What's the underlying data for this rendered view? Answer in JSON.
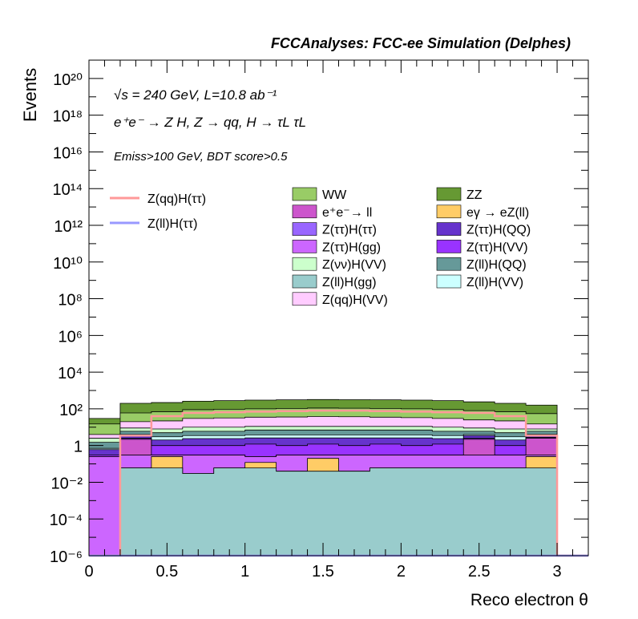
{
  "header": {
    "experiment": "FCCAnalyses: FCC-ee Simulation (Delphes)",
    "energy_line": "√s = 240 GeV, L=10.8 ab⁻¹",
    "process_line": "e⁺e⁻ → Z H, Z → qq, H → τL τL",
    "selection_line": "Emiss>100 GeV, BDT score>0.5"
  },
  "chart_data": {
    "type": "area",
    "title": "",
    "xlabel": "Reco electron θ",
    "ylabel": "Events",
    "xlim": [
      0,
      3.2
    ],
    "ylim": [
      1e-06,
      1e+21
    ],
    "log_y": true,
    "grid": false,
    "legend_placement": "top",
    "x_ticks": [
      "0",
      "0.5",
      "1",
      "1.5",
      "2",
      "2.5",
      "3"
    ],
    "y_ticks": [
      "10⁻⁶",
      "10⁻⁴",
      "10⁻²",
      "1",
      "10²",
      "10⁴",
      "10⁶",
      "10⁸",
      "10¹⁰",
      "10¹²",
      "10¹⁴",
      "10¹⁶",
      "10¹⁸",
      "10²⁰"
    ],
    "bin_edges": [
      0,
      0.2,
      0.4,
      0.6,
      0.8,
      1.0,
      1.2,
      1.4,
      1.6,
      1.8,
      2.0,
      2.2,
      2.4,
      2.6,
      2.8,
      3.0,
      3.2
    ],
    "stack_edges": [
      {
        "name": "Z(ll)H(gg)",
        "color": "#99cccc",
        "values": [
          1e-06,
          0.06,
          0.06,
          0.03,
          0.06,
          0.06,
          0.04,
          0.04,
          0.04,
          0.06,
          0.06,
          0.06,
          0.06,
          0.06,
          0.06,
          1e-06
        ]
      },
      {
        "name": "eγ → eZ(ll)",
        "color": "#ffcc66",
        "values": [
          1e-06,
          0.06,
          0.25,
          0.03,
          0.06,
          0.12,
          0.04,
          0.2,
          0.04,
          0.06,
          0.06,
          0.06,
          0.06,
          0.06,
          0.25,
          1e-06
        ]
      },
      {
        "name": "Z(ττ)H(gg)",
        "color": "#cc66ff",
        "values": [
          0.25,
          0.3,
          0.3,
          0.3,
          0.3,
          0.25,
          0.3,
          0.3,
          0.3,
          0.3,
          0.3,
          0.3,
          0.3,
          0.3,
          0.3,
          1e-06
        ]
      },
      {
        "name": "Z(ττ)H(ττ)",
        "color": "#9966ff",
        "values": [
          0.25,
          0.3,
          0.3,
          0.3,
          0.3,
          0.25,
          0.3,
          0.3,
          0.3,
          0.3,
          0.3,
          0.3,
          0.3,
          0.3,
          0.3,
          1e-06
        ]
      },
      {
        "name": "e⁺e⁻→ ll",
        "color": "#cc55cc",
        "values": [
          0.25,
          2.2,
          0.3,
          0.3,
          0.3,
          0.25,
          0.3,
          0.3,
          0.3,
          0.3,
          0.3,
          0.3,
          2.2,
          0.3,
          2.5,
          1e-06
        ]
      },
      {
        "name": "Z(ττ)H(VV)",
        "color": "#9933ff",
        "values": [
          0.3,
          2.5,
          1.0,
          1.0,
          1.0,
          1.2,
          1.0,
          1.2,
          1.0,
          1.2,
          1.0,
          1.2,
          2.5,
          1.0,
          2.8,
          1e-06
        ]
      },
      {
        "name": "Z(ττ)H(QQ)",
        "color": "#6633cc",
        "values": [
          0.6,
          3.5,
          2.0,
          2.4,
          2.4,
          2.6,
          2.6,
          2.6,
          2.6,
          2.6,
          2.6,
          2.4,
          3.5,
          2.0,
          3.8,
          1e-06
        ]
      },
      {
        "name": "Z(ll)H(VV)",
        "color": "#ccffff",
        "values": [
          0.7,
          4.0,
          3.0,
          3.5,
          3.5,
          3.8,
          3.8,
          3.8,
          3.8,
          3.8,
          3.8,
          3.5,
          4.0,
          3.0,
          4.2,
          1e-06
        ]
      },
      {
        "name": "Z(ll)H(QQ)",
        "color": "#669999",
        "values": [
          1.5,
          6,
          5,
          6,
          6,
          7,
          7,
          7,
          7,
          7,
          7,
          6,
          6,
          5,
          6,
          1e-06
        ]
      },
      {
        "name": "Z(νν)H(VV)",
        "color": "#ccffcc",
        "values": [
          2.5,
          9,
          8,
          10,
          10,
          11,
          11,
          11,
          11,
          11,
          11,
          10,
          9,
          8,
          8,
          1e-06
        ]
      },
      {
        "name": "Z(qq)H(VV)",
        "color": "#ffccff",
        "values": [
          4,
          20,
          22,
          30,
          32,
          35,
          36,
          38,
          37,
          35,
          33,
          30,
          25,
          22,
          15,
          1e-06
        ]
      },
      {
        "name": "WW",
        "color": "#99cc66",
        "values": [
          15,
          60,
          70,
          90,
          95,
          100,
          105,
          110,
          108,
          105,
          100,
          92,
          80,
          70,
          55,
          1e-06
        ]
      },
      {
        "name": "ZZ",
        "color": "#669933",
        "values": [
          30,
          200,
          220,
          260,
          280,
          300,
          310,
          320,
          315,
          310,
          300,
          280,
          240,
          200,
          160,
          1e-06
        ]
      }
    ],
    "overlay_lines": [
      {
        "name": "Z(qq)H(ττ)",
        "color": "#ff9999",
        "values": [
          1e-06,
          3.5,
          40,
          60,
          65,
          70,
          75,
          80,
          80,
          75,
          70,
          65,
          60,
          40,
          3.5,
          1e-06
        ]
      },
      {
        "name": "Z(ll)H(ττ)",
        "color": "#9999ff",
        "values": [
          1e-06,
          1e-06,
          1e-06,
          1e-06,
          1e-06,
          1e-06,
          1e-06,
          1e-06,
          1e-06,
          1e-06,
          1e-06,
          1e-06,
          1e-06,
          1e-06,
          1e-06,
          1e-06
        ]
      }
    ],
    "legend_lines": [
      {
        "name": "Z(qq)H(ττ)",
        "color": "#ff9999"
      },
      {
        "name": "Z(ll)H(ττ)",
        "color": "#9999ff"
      }
    ],
    "legend_boxes": [
      {
        "name": "WW",
        "color": "#99cc66"
      },
      {
        "name": "ZZ",
        "color": "#669933"
      },
      {
        "name": "e⁺e⁻→ ll",
        "color": "#cc55cc"
      },
      {
        "name": "eγ → eZ(ll)",
        "color": "#ffcc66"
      },
      {
        "name": "Z(ττ)H(ττ)",
        "color": "#9966ff"
      },
      {
        "name": "Z(ττ)H(QQ)",
        "color": "#6633cc"
      },
      {
        "name": "Z(ττ)H(gg)",
        "color": "#cc66ff"
      },
      {
        "name": "Z(ττ)H(VV)",
        "color": "#9933ff"
      },
      {
        "name": "Z(νν)H(VV)",
        "color": "#ccffcc"
      },
      {
        "name": "Z(ll)H(QQ)",
        "color": "#669999"
      },
      {
        "name": "Z(ll)H(gg)",
        "color": "#99cccc"
      },
      {
        "name": "Z(ll)H(VV)",
        "color": "#ccffff"
      },
      {
        "name": "Z(qq)H(VV)",
        "color": "#ffccff"
      }
    ]
  }
}
